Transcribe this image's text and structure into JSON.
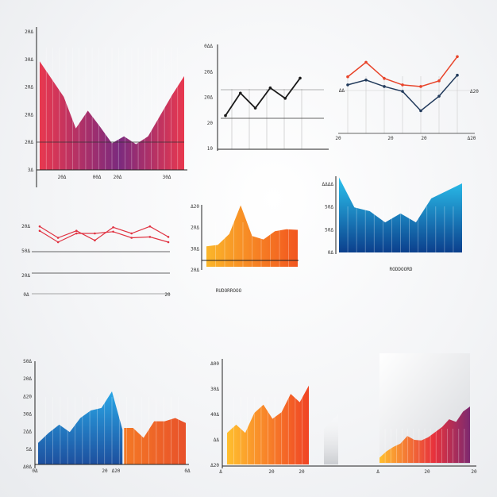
{
  "chart_data": [
    {
      "id": "c1",
      "type": "area",
      "colors": [
        "#e8384f",
        "#7b2a7e"
      ],
      "y_ticks": [
        "20Δ",
        "30Δ",
        "20Δ",
        "20Δ",
        "20Δ",
        "3Δ"
      ],
      "x_ticks": [
        "20Δ",
        "00Δ",
        "20Δ",
        "30Δ"
      ],
      "x": [
        0,
        1,
        2,
        3,
        4,
        5,
        6,
        7,
        8,
        9,
        10,
        11,
        12
      ],
      "values": [
        110,
        92,
        74,
        42,
        60,
        44,
        27,
        34,
        26,
        34,
        55,
        76,
        95
      ],
      "ylim": [
        0,
        140
      ]
    },
    {
      "id": "c2",
      "type": "line",
      "colors": [
        "#1a1a1a"
      ],
      "y_ticks": [
        "0ΔΔ",
        "20Δ",
        "20Δ",
        "20",
        "10"
      ],
      "series": [
        {
          "values": [
            45,
            75,
            55,
            82,
            68,
            95
          ]
        }
      ],
      "ylim": [
        0,
        140
      ]
    },
    {
      "id": "c3",
      "type": "line",
      "colors": [
        "#e8442a",
        "#223b5c"
      ],
      "y_ticks": [
        "ΔΔ"
      ],
      "right_tick": "Δ20",
      "x_ticks": [
        "20",
        "20",
        "20",
        "Δ20"
      ],
      "series": [
        {
          "values": [
            70,
            88,
            68,
            60,
            58,
            65,
            95
          ]
        },
        {
          "values": [
            60,
            66,
            58,
            52,
            28,
            46,
            72
          ]
        }
      ],
      "ylim": [
        0,
        110
      ]
    },
    {
      "id": "c4",
      "type": "line",
      "colors": [
        "#e03241"
      ],
      "y_ticks": [
        "20Δ",
        "50Δ",
        "20Δ"
      ],
      "x_ticks": [
        "0Δ",
        "20"
      ],
      "series": [
        {
          "values": [
            68,
            55,
            63,
            52,
            67,
            60,
            68,
            56
          ]
        },
        {
          "values": [
            63,
            50,
            60,
            60,
            62,
            55,
            56,
            50
          ]
        }
      ],
      "ylim": [
        0,
        100
      ]
    },
    {
      "id": "c5",
      "type": "area",
      "colors": [
        "#fbb62a",
        "#f2561f"
      ],
      "y_ticks": [
        "Δ20",
        "20Δ",
        "30Δ",
        "20Δ"
      ],
      "caption": "RUDORROOO",
      "x": [
        0,
        1,
        2,
        3,
        4,
        5,
        6,
        7,
        8
      ],
      "values": [
        30,
        32,
        48,
        90,
        45,
        40,
        52,
        55,
        54
      ],
      "ylim": [
        0,
        100
      ]
    },
    {
      "id": "c6",
      "type": "area",
      "colors": [
        "#2bc2ee",
        "#0b3f8c"
      ],
      "y_ticks": [
        "ΔΔΔΔ",
        "50Δ",
        "50Δ",
        "0Δ"
      ],
      "caption": "RODDOORD",
      "x": [
        0,
        1,
        2,
        3,
        4,
        5,
        6,
        7,
        8
      ],
      "values": [
        100,
        60,
        55,
        40,
        52,
        40,
        72,
        82,
        92
      ],
      "ylim": [
        0,
        110
      ]
    },
    {
      "id": "c7",
      "type": "area",
      "colors": [
        "#29a6e6",
        "#f47925",
        "#e8512a"
      ],
      "y_ticks": [
        "S0Δ",
        "20Δ",
        "Δ20",
        "30Δ",
        "2ΔΔ",
        "5Δ",
        "Δ0Δ"
      ],
      "x_ticks": [
        "0Δ",
        "20",
        "Δ20",
        "0Δ"
      ],
      "x": [
        0,
        1,
        2,
        3,
        4,
        5,
        6,
        7,
        8,
        9,
        10,
        11,
        12,
        13,
        14
      ],
      "values": [
        26,
        38,
        48,
        39,
        56,
        65,
        68,
        88,
        42,
        44,
        32,
        52,
        52,
        56,
        50
      ],
      "split_index": 9,
      "ylim": [
        0,
        110
      ]
    },
    {
      "id": "c8",
      "type": "area",
      "colors": [
        "#ffbf2e",
        "#f04424"
      ],
      "y_ticks": [
        "Δ00",
        "30Δ",
        "40Δ",
        "ΔΔ",
        "Δ20"
      ],
      "x_ticks": [
        "Δ",
        "20",
        "20"
      ],
      "x": [
        0,
        1,
        2,
        3,
        4,
        5,
        6,
        7,
        8,
        9
      ],
      "values": [
        38,
        48,
        38,
        62,
        72,
        55,
        63,
        85,
        75,
        95
      ],
      "ylim": [
        0,
        110
      ]
    },
    {
      "id": "c9",
      "type": "area",
      "colors": [
        "#ffbf2e",
        "#e8323c",
        "#7d2a70"
      ],
      "x_ticks": [
        "Δ",
        "20",
        "20"
      ],
      "x": [
        0,
        1,
        2,
        3,
        4,
        5,
        6,
        7,
        8,
        9,
        10,
        11,
        12,
        13
      ],
      "values": [
        8,
        18,
        25,
        30,
        42,
        36,
        35,
        40,
        48,
        56,
        68,
        64,
        80,
        88
      ],
      "ylim": [
        0,
        140
      ]
    }
  ]
}
